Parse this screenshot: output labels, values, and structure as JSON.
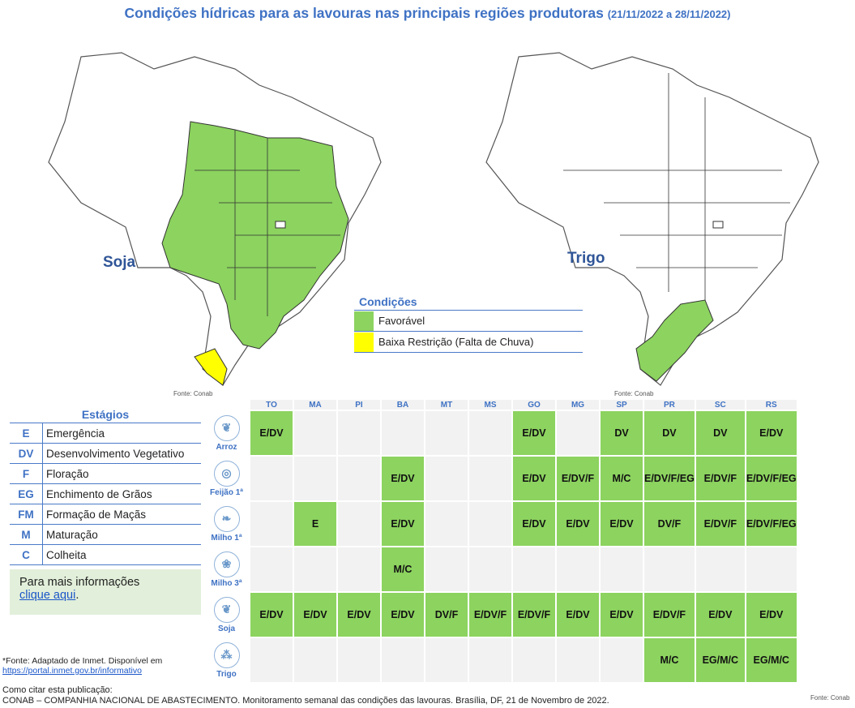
{
  "title": {
    "main": "Condições hídricas para as lavouras nas principais regiões produtoras",
    "dates": "(21/11/2022 a 28/11/2022)"
  },
  "maps": [
    {
      "label": "Soja",
      "fonte": "Fonte: Conab"
    },
    {
      "label": "Trigo",
      "fonte": "Fonte: Conab"
    }
  ],
  "conditions_legend": {
    "title": "Condições",
    "items": [
      {
        "label": "Favorável",
        "color": "#8cd35f"
      },
      {
        "label": "Baixa Restrição (Falta de Chuva)",
        "color": "#ffff00"
      }
    ]
  },
  "stages": {
    "title": "Estágios",
    "items": [
      {
        "code": "E",
        "name": "Emergência"
      },
      {
        "code": "DV",
        "name": "Desenvolvimento Vegetativo"
      },
      {
        "code": "F",
        "name": "Floração"
      },
      {
        "code": "EG",
        "name": "Enchimento de Grãos"
      },
      {
        "code": "FM",
        "name": "Formação de Maçãs"
      },
      {
        "code": "M",
        "name": "Maturação"
      },
      {
        "code": "C",
        "name": "Colheita"
      }
    ]
  },
  "info": {
    "text": "Para mais informações",
    "link": "clique aqui",
    "suffix": "."
  },
  "table": {
    "states": [
      "TO",
      "MA",
      "PI",
      "BA",
      "MT",
      "MS",
      "GO",
      "MG",
      "SP",
      "PR",
      "SC",
      "RS"
    ],
    "rows": [
      {
        "crop": "Arroz",
        "cells": [
          "E/DV",
          "",
          "",
          "",
          "",
          "",
          "E/DV",
          "",
          "DV",
          "DV",
          "DV",
          "E/DV"
        ]
      },
      {
        "crop": "Feijão 1ª",
        "cells": [
          "",
          "",
          "",
          "E/DV",
          "",
          "",
          "E/DV",
          "E/DV/F",
          "M/C",
          "E/DV/F/EG",
          "E/DV/F",
          "E/DV/F/EG"
        ]
      },
      {
        "crop": "Milho 1ª",
        "cells": [
          "",
          "E",
          "",
          "E/DV",
          "",
          "",
          "E/DV",
          "E/DV",
          "E/DV",
          "DV/F",
          "E/DV/F",
          "E/DV/F/EG"
        ]
      },
      {
        "crop": "Milho 3ª",
        "cells": [
          "",
          "",
          "",
          "M/C",
          "",
          "",
          "",
          "",
          "",
          "",
          "",
          ""
        ]
      },
      {
        "crop": "Soja",
        "cells": [
          "E/DV",
          "E/DV",
          "E/DV",
          "E/DV",
          "DV/F",
          "E/DV/F",
          "E/DV/F",
          "E/DV",
          "E/DV",
          "E/DV/F",
          "E/DV",
          "E/DV"
        ]
      },
      {
        "crop": "Trigo",
        "cells": [
          "",
          "",
          "",
          "",
          "",
          "",
          "",
          "",
          "",
          "M/C",
          "EG/M/C",
          "EG/M/C"
        ]
      }
    ],
    "fonte": "Fonte: Conab"
  },
  "footer": {
    "source": "*Fonte: Adaptado de Inmet. Disponível em",
    "source_link": "https://portal.inmet.gov.br/informativo",
    "cite_label": "Como citar esta publicação:",
    "citation": "CONAB – COMPANHIA NACIONAL DE ABASTECIMENTO. Monitoramento semanal das condições das lavouras. Brasília, DF, 21 de Novembro de 2022."
  }
}
